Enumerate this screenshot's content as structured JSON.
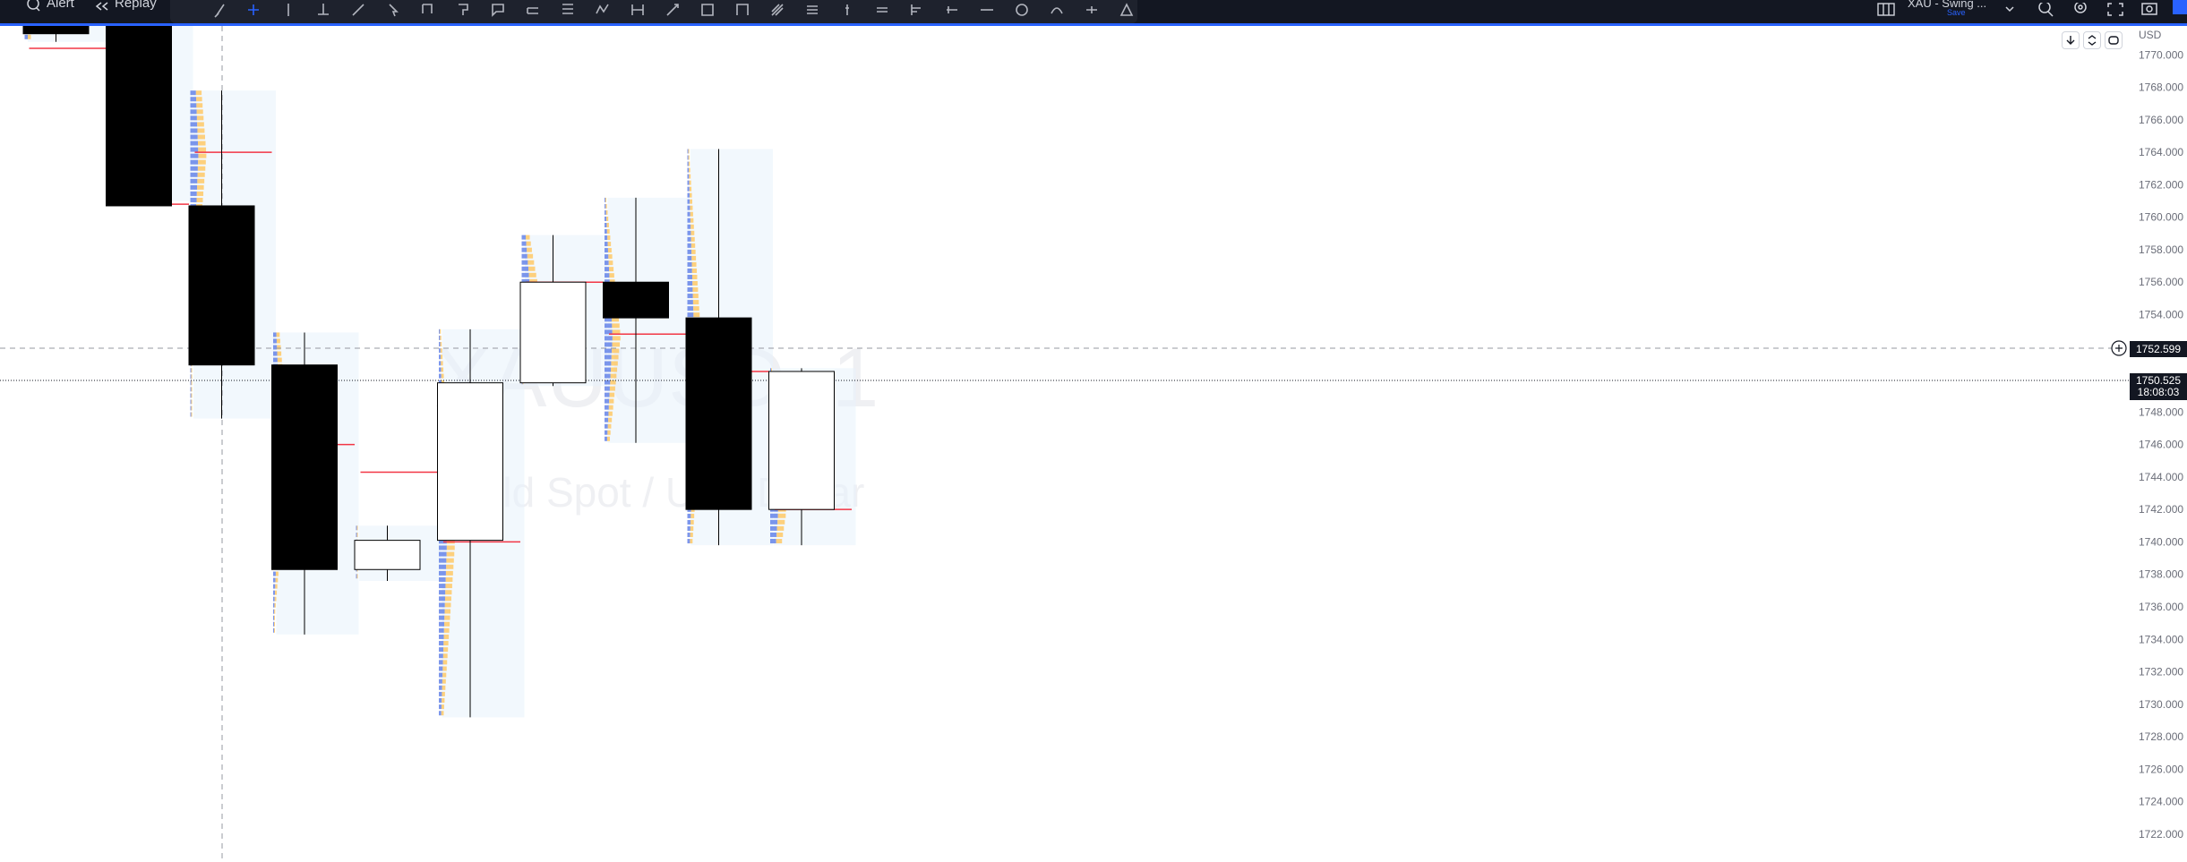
{
  "toolbar": {
    "alert_label": "Alert",
    "replay_label": "Replay",
    "drawing_tools": [
      "brush-icon",
      "crosshair-icon",
      "vertical-line-icon",
      "anchored-vwap-icon",
      "trend-line-icon",
      "cursor-arrow-icon",
      "callout-icon",
      "flag-pin-icon",
      "note-icon",
      "parallel-channel-icon",
      "fib-retracement-icon",
      "polyline-icon",
      "date-range-icon",
      "arrow-icon",
      "rectangle-icon",
      "path-icon",
      "pitchfork-icon",
      "price-range-icon",
      "ray-icon",
      "lines-icon",
      "price-line-icon",
      "projection-icon",
      "horizontal-line-icon",
      "circle-icon",
      "curve-icon",
      "cross-line-icon",
      "triangle-icon"
    ]
  },
  "symbol": {
    "name": "XAU - Swing ...",
    "save_label": "Save"
  },
  "chart": {
    "currency": "USD",
    "watermark_symbol": "XAUUSD, 1",
    "watermark_desc": "Gold Spot / U.S. Dollar",
    "crosshair_price": "1752.599",
    "last_price": "1750.525",
    "countdown": "18:08:03",
    "colors": {
      "up_body": "#ffffff",
      "down_body": "#000000",
      "poc_line": "#f23645",
      "volume_blue": "#5b7ce6",
      "volume_orange": "#ffc55c",
      "profile_bg": "#e8f2fb"
    }
  },
  "chart_data": {
    "type": "candlestick",
    "ylim": [
      1721,
      1773
    ],
    "y_ticks": [
      1770,
      1768,
      1766,
      1764,
      1762,
      1760,
      1758,
      1756,
      1754,
      1752,
      1750,
      1748,
      1746,
      1744,
      1742,
      1740,
      1738,
      1736,
      1734,
      1732,
      1730,
      1728,
      1726,
      1724,
      1722
    ],
    "y_tick_labels": [
      "1770.000",
      "1768.000",
      "1766.000",
      "1764.000",
      "1762.000",
      "1760.000",
      "1758.000",
      "1756.000",
      "1754.000",
      "1752.000",
      "1750.000",
      "1748.000",
      "1746.000",
      "1744.000",
      "1742.000",
      "1740.000",
      "1738.000",
      "1736.000",
      "1734.000",
      "1732.000",
      "1730.000",
      "1728.000",
      "1726.000",
      "1724.000",
      "1722.000"
    ],
    "candles": [
      {
        "open": 1772.6,
        "high": 1773.0,
        "low": 1770.8,
        "close": 1771.3,
        "poc": 1770.4
      },
      {
        "open": 1773.0,
        "high": 1773.0,
        "low": 1761.0,
        "close": 1760.7,
        "poc": 1760.8
      },
      {
        "open": 1760.7,
        "high": 1767.8,
        "low": 1747.6,
        "close": 1750.9,
        "poc": 1764.0
      },
      {
        "open": 1750.9,
        "high": 1752.9,
        "low": 1734.3,
        "close": 1738.3,
        "poc": 1746.0
      },
      {
        "open": 1738.3,
        "high": 1741.0,
        "low": 1737.6,
        "close": 1740.1,
        "poc": 1744.3
      },
      {
        "open": 1740.1,
        "high": 1753.1,
        "low": 1729.2,
        "close": 1749.8,
        "poc": 1740.0
      },
      {
        "open": 1749.8,
        "high": 1758.9,
        "low": 1749.6,
        "close": 1756.0,
        "poc": 1756.0
      },
      {
        "open": 1756.0,
        "high": 1761.2,
        "low": 1746.1,
        "close": 1753.8,
        "poc": 1752.8
      },
      {
        "open": 1753.8,
        "high": 1764.2,
        "low": 1739.8,
        "close": 1742.0,
        "poc": 1750.5
      },
      {
        "open": 1742.0,
        "high": 1750.7,
        "low": 1739.8,
        "close": 1750.5,
        "poc": 1742.0
      }
    ]
  }
}
